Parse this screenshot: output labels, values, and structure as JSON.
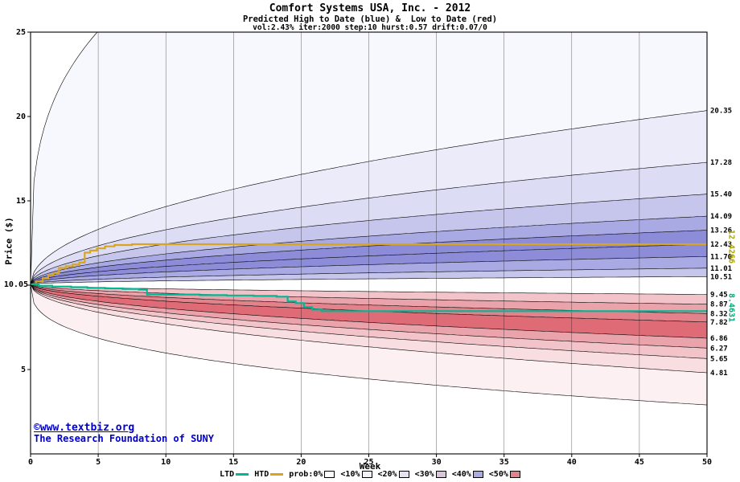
{
  "footer": {
    "site": "©www.textbiz.org",
    "org": "The Research Foundation of SUNY",
    "text_color": "#0000cc"
  },
  "chart_data": {
    "type": "area",
    "title": "Comfort Systems USA, Inc. - 2012",
    "subtitle": "Predicted High to Date (blue) &  Low to Date (red)",
    "params_line": "vol:2.43% iter:2000 step:10 hurst:0.57 drift:0.07/0",
    "xlabel": "Week",
    "ylabel": "Price ($)",
    "xlim": [
      0,
      50
    ],
    "ylim": [
      0,
      25
    ],
    "x_ticks": [
      0,
      5,
      10,
      15,
      20,
      25,
      30,
      35,
      40,
      45,
      50
    ],
    "y_ticks": [
      5,
      15,
      20,
      25
    ],
    "y_tick_marks": [
      5,
      10,
      15,
      20,
      25
    ],
    "grid": "vertical-at-x-ticks",
    "start_price": 10.05,
    "start_price_label": "10.05",
    "htd_final": "12.4266",
    "ltd_final": "8.4631",
    "colors": {
      "htd_line": "#d9a520",
      "ltd_line": "#00b894",
      "htd_final_label": "#a8a000",
      "ltd_final_label": "#00a878",
      "boundary_stroke": "#000000"
    },
    "bands": {
      "model": "price(w) = start_price + k * w^exp, with k = (end_value - start_price) / 50^exp",
      "boundaries": [
        {
          "end_value": 40.0,
          "exp": 0.3,
          "label": ""
        },
        {
          "end_value": 20.35,
          "exp": 0.5,
          "label": "20.35"
        },
        {
          "end_value": 17.28,
          "exp": 0.5,
          "label": "17.28"
        },
        {
          "end_value": 15.4,
          "exp": 0.5,
          "label": "15.40"
        },
        {
          "end_value": 14.09,
          "exp": 0.5,
          "label": "14.09"
        },
        {
          "end_value": 13.26,
          "exp": 0.5,
          "label": "13.26"
        },
        {
          "end_value": 12.43,
          "exp": 0.5,
          "label": "12.43"
        },
        {
          "end_value": 11.7,
          "exp": 0.5,
          "label": "11.70"
        },
        {
          "end_value": 11.01,
          "exp": 0.5,
          "label": "11.01"
        },
        {
          "end_value": 10.51,
          "exp": 0.5,
          "label": "10.51"
        },
        {
          "end_value": 9.45,
          "exp": 0.5,
          "label": "9.45"
        },
        {
          "end_value": 8.87,
          "exp": 0.5,
          "label": "8.87"
        },
        {
          "end_value": 8.32,
          "exp": 0.5,
          "label": "8.32"
        },
        {
          "end_value": 7.82,
          "exp": 0.5,
          "label": "7.82"
        },
        {
          "end_value": 6.86,
          "exp": 0.5,
          "label": "6.86"
        },
        {
          "end_value": 6.27,
          "exp": 0.5,
          "label": "6.27"
        },
        {
          "end_value": 5.65,
          "exp": 0.5,
          "label": "5.65"
        },
        {
          "end_value": 4.81,
          "exp": 0.5,
          "label": "4.81"
        },
        {
          "end_value": 2.9,
          "exp": 0.35,
          "label": ""
        }
      ],
      "fills": [
        "#f7f7fe",
        "#ebebf9",
        "#dcdcf4",
        "#c6c6ed",
        "#a9a9e3",
        "#8c8cd9",
        "#8c8cd9",
        "#a9a9e3",
        "#c6c6ed",
        "#ffffff",
        "#f2c4ca",
        "#eba3ab",
        "#e4828c",
        "#df6b77",
        "#eba3ab",
        "#f2c4ca",
        "#f8dde1",
        "#fcf0f2"
      ]
    },
    "series": [
      {
        "name": "HTD",
        "type": "step",
        "color": "#d9a520",
        "points": [
          [
            0,
            10.05
          ],
          [
            0.4,
            10.22
          ],
          [
            0.9,
            10.42
          ],
          [
            1.3,
            10.62
          ],
          [
            1.7,
            10.72
          ],
          [
            2.1,
            11.02
          ],
          [
            2.6,
            11.12
          ],
          [
            3.1,
            11.22
          ],
          [
            3.6,
            11.34
          ],
          [
            4.0,
            11.93
          ],
          [
            4.4,
            12.05
          ],
          [
            4.9,
            12.18
          ],
          [
            5.5,
            12.3
          ],
          [
            6.2,
            12.38
          ],
          [
            7.5,
            12.4266
          ],
          [
            50,
            12.4266
          ]
        ]
      },
      {
        "name": "LTD",
        "type": "step",
        "color": "#00b894",
        "points": [
          [
            0,
            10.05
          ],
          [
            0.6,
            9.97
          ],
          [
            1.6,
            9.92
          ],
          [
            3.0,
            9.88
          ],
          [
            4.2,
            9.84
          ],
          [
            5.5,
            9.81
          ],
          [
            6.8,
            9.78
          ],
          [
            8.0,
            9.74
          ],
          [
            8.6,
            9.45
          ],
          [
            12.5,
            9.41
          ],
          [
            14.5,
            9.39
          ],
          [
            16.5,
            9.36
          ],
          [
            18.2,
            9.32
          ],
          [
            19.0,
            9.04
          ],
          [
            19.6,
            8.94
          ],
          [
            20.2,
            8.7
          ],
          [
            20.8,
            8.55
          ],
          [
            21.5,
            8.4631
          ],
          [
            50,
            8.4631
          ]
        ]
      }
    ],
    "legend": {
      "position": "bottom",
      "items": [
        {
          "label": "LTD",
          "type": "line",
          "color": "#00b894"
        },
        {
          "label": "HTD",
          "type": "line",
          "color": "#d9a520"
        },
        {
          "label": "prob:0%",
          "type": "box",
          "color": "#ffffff"
        },
        {
          "label": "<10%",
          "type": "box",
          "color": "#f2f2fb"
        },
        {
          "label": "<20%",
          "type": "box",
          "color": "#e6e0f2"
        },
        {
          "label": "<30%",
          "type": "box",
          "color": "#d9c4da"
        },
        {
          "label": "<40%",
          "type": "box",
          "color": "#a9a9e3"
        },
        {
          "label": "<50%",
          "type": "box",
          "color": "#e4828c"
        }
      ]
    }
  }
}
